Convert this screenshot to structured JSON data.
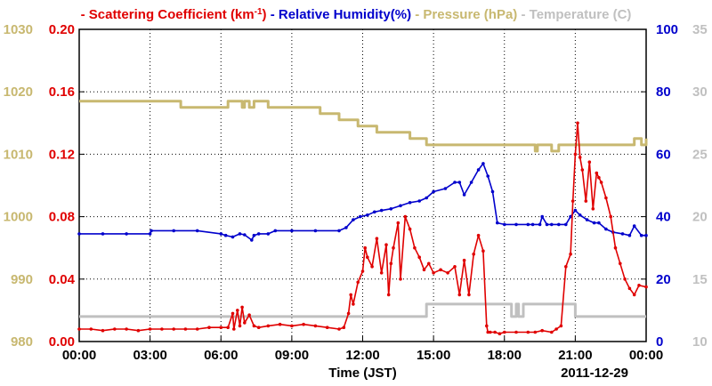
{
  "chart_data": {
    "type": "line",
    "xlabel": "Time (JST)",
    "date_label": "2011-12-29",
    "x_tick_labels": [
      "00:00",
      "03:00",
      "06:00",
      "09:00",
      "12:00",
      "15:00",
      "18:00",
      "21:00",
      "00:00"
    ],
    "xlim_hours": [
      0,
      24
    ],
    "grid": true,
    "legend_placement": "top",
    "axes": {
      "scattering": {
        "ylim": [
          0,
          0.2
        ],
        "ticks": [
          "0.00",
          "0.04",
          "0.08",
          "0.12",
          "0.16",
          "0.20"
        ],
        "tick_values": [
          0,
          0.04,
          0.08,
          0.12,
          0.16,
          0.2
        ],
        "color": "#e00000",
        "side": "left-inner"
      },
      "pressure": {
        "ylim": [
          980,
          1030
        ],
        "ticks": [
          "980",
          "990",
          "1000",
          "1010",
          "1020",
          "1030"
        ],
        "tick_values": [
          980,
          990,
          1000,
          1010,
          1020,
          1030
        ],
        "color": "#c8b870",
        "side": "left-outer"
      },
      "humidity": {
        "ylim": [
          0,
          100
        ],
        "ticks": [
          "0",
          "20",
          "40",
          "60",
          "80",
          "100"
        ],
        "tick_values": [
          0,
          20,
          40,
          60,
          80,
          100
        ],
        "color": "#0000cc",
        "side": "right-inner"
      },
      "temperature": {
        "ylim": [
          10,
          35
        ],
        "ticks": [
          "10",
          "15",
          "20",
          "25",
          "30",
          "35"
        ],
        "tick_values": [
          10,
          15,
          20,
          25,
          30,
          35
        ],
        "color": "#c0c0c0",
        "side": "right-outer"
      }
    },
    "legend": [
      {
        "text": "Scattering Coefficient (km",
        "sup": "-1",
        "tail": ")",
        "color": "#e00000"
      },
      {
        "text": "Relative Humidity(%)",
        "sup": "",
        "tail": "",
        "color": "#0000cc"
      },
      {
        "text": "Pressure (hPa)",
        "sup": "",
        "tail": "",
        "color": "#c8b870"
      },
      {
        "text": "Temperature (C)",
        "sup": "",
        "tail": "",
        "color": "#c0c0c0"
      }
    ],
    "series": [
      {
        "name": "Scattering Coefficient",
        "axis": "scattering",
        "color": "#e00000",
        "markers": true,
        "x": [
          0,
          0.5,
          1,
          1.5,
          2,
          2.5,
          3,
          3.5,
          4,
          4.5,
          5,
          5.5,
          6,
          6.3,
          6.5,
          6.55,
          6.7,
          6.8,
          6.9,
          7,
          7.2,
          7.4,
          7.6,
          8,
          8.5,
          9,
          9.5,
          10,
          10.5,
          11,
          11.2,
          11.4,
          11.5,
          11.6,
          11.8,
          12,
          12.1,
          12.2,
          12.4,
          12.6,
          12.8,
          13,
          13.1,
          13.2,
          13.3,
          13.5,
          13.6,
          13.8,
          14,
          14.2,
          14.4,
          14.6,
          14.8,
          15,
          15.3,
          15.6,
          15.9,
          16.1,
          16.3,
          16.5,
          16.7,
          16.9,
          17.1,
          17.25,
          17.3,
          17.4,
          17.6,
          17.8,
          18,
          18.5,
          19,
          19.3,
          19.6,
          20,
          20.2,
          20.4,
          20.6,
          20.8,
          20.9,
          21,
          21.1,
          21.2,
          21.3,
          21.45,
          21.6,
          21.75,
          21.9,
          22,
          22.1,
          22.3,
          22.5,
          22.7,
          22.9,
          23.1,
          23.3,
          23.5,
          23.7,
          24
        ],
        "y": [
          0.008,
          0.008,
          0.007,
          0.008,
          0.008,
          0.007,
          0.008,
          0.008,
          0.008,
          0.008,
          0.008,
          0.009,
          0.009,
          0.009,
          0.018,
          0.008,
          0.02,
          0.01,
          0.022,
          0.012,
          0.017,
          0.01,
          0.009,
          0.01,
          0.011,
          0.01,
          0.011,
          0.01,
          0.009,
          0.008,
          0.009,
          0.018,
          0.03,
          0.024,
          0.038,
          0.045,
          0.06,
          0.054,
          0.048,
          0.066,
          0.044,
          0.062,
          0.03,
          0.05,
          0.06,
          0.076,
          0.04,
          0.08,
          0.072,
          0.06,
          0.054,
          0.046,
          0.05,
          0.044,
          0.046,
          0.044,
          0.048,
          0.03,
          0.052,
          0.03,
          0.056,
          0.068,
          0.058,
          0.01,
          0.006,
          0.006,
          0.006,
          0.005,
          0.006,
          0.006,
          0.006,
          0.006,
          0.007,
          0.006,
          0.008,
          0.01,
          0.048,
          0.056,
          0.09,
          0.12,
          0.14,
          0.118,
          0.11,
          0.09,
          0.115,
          0.085,
          0.108,
          0.105,
          0.102,
          0.092,
          0.08,
          0.06,
          0.05,
          0.04,
          0.034,
          0.03,
          0.036,
          0.035
        ]
      },
      {
        "name": "Relative Humidity",
        "axis": "humidity",
        "color": "#0000cc",
        "markers": true,
        "x": [
          0,
          1,
          2,
          3,
          3.05,
          4,
          5,
          6,
          6.2,
          6.5,
          6.8,
          7,
          7.3,
          7.4,
          7.6,
          8,
          8.3,
          9,
          10,
          11,
          11.3,
          11.6,
          11.9,
          12.2,
          12.5,
          12.8,
          13.2,
          13.6,
          14,
          14.4,
          14.7,
          15,
          15.5,
          15.9,
          16.1,
          16.3,
          16.6,
          16.9,
          17.1,
          17.3,
          17.5,
          17.7,
          18,
          18.5,
          19,
          19.2,
          19.5,
          19.6,
          19.8,
          20,
          20.3,
          20.6,
          20.8,
          21,
          21.2,
          21.5,
          21.8,
          22,
          22.3,
          22.6,
          23,
          23.3,
          23.5,
          23.8,
          24
        ],
        "y": [
          34.5,
          34.5,
          34.5,
          34.5,
          35.5,
          35.5,
          35.5,
          34.5,
          34,
          33.5,
          34.5,
          34.2,
          32.5,
          34,
          34.5,
          34.5,
          35.5,
          35.5,
          35.5,
          35.5,
          36.5,
          39,
          40,
          40.5,
          41.5,
          42,
          42.5,
          43.5,
          44.5,
          45,
          46,
          48,
          49,
          51,
          51,
          47,
          51,
          55,
          57,
          53,
          48,
          38,
          37.5,
          37.5,
          37.5,
          37.5,
          37.5,
          40,
          37.5,
          37.5,
          37.5,
          37.5,
          40,
          42,
          40.5,
          39,
          38,
          38,
          36,
          35,
          34.5,
          34,
          37,
          34,
          34
        ]
      },
      {
        "name": "Pressure",
        "axis": "pressure",
        "color": "#c8b870",
        "markers": false,
        "x": [
          0,
          1,
          2,
          3,
          3.5,
          4.2,
          4.3,
          5,
          5.5,
          6.2,
          6.3,
          6.8,
          6.9,
          7,
          7.1,
          7.2,
          7.4,
          7.8,
          8,
          8.5,
          9,
          10,
          10.2,
          10.8,
          11,
          11.3,
          11.8,
          12,
          12.6,
          13,
          13.6,
          14,
          14.6,
          14.7,
          15,
          16,
          17,
          18,
          19,
          19.3,
          19.4,
          19.8,
          20,
          20.2,
          20.3,
          21,
          22,
          23,
          23.5,
          23.8,
          24
        ],
        "y": [
          1018.5,
          1018.5,
          1018.5,
          1018.5,
          1018.5,
          1018.5,
          1017.5,
          1017.5,
          1017.5,
          1017.5,
          1018.5,
          1018.5,
          1017.5,
          1018.5,
          1018.5,
          1017.5,
          1018.5,
          1018.5,
          1017.5,
          1017.5,
          1017.5,
          1017.5,
          1016.5,
          1016.5,
          1015.5,
          1015.5,
          1014.5,
          1014.5,
          1013.5,
          1013.5,
          1013.5,
          1012.5,
          1012.5,
          1011.5,
          1011.5,
          1011.5,
          1011.5,
          1011.5,
          1011.5,
          1010.5,
          1011.5,
          1011.5,
          1010.5,
          1010.5,
          1011.5,
          1011.5,
          1011.5,
          1011.5,
          1012.5,
          1011.5,
          1012.5
        ]
      },
      {
        "name": "Temperature",
        "axis": "temperature",
        "color": "#c0c0c0",
        "markers": false,
        "x": [
          0,
          2,
          4,
          6,
          8,
          9,
          10,
          11,
          12,
          13,
          14,
          14.6,
          14.7,
          16,
          17,
          18,
          18.2,
          18.3,
          18.5,
          18.6,
          18.8,
          19,
          20,
          21,
          22,
          23,
          24
        ],
        "y": [
          12,
          12,
          12,
          12,
          12,
          12,
          12,
          12,
          12,
          12,
          12,
          12,
          13,
          13,
          13,
          13,
          13,
          12,
          13,
          12,
          13,
          13,
          13,
          12,
          12,
          12,
          12
        ]
      }
    ]
  }
}
